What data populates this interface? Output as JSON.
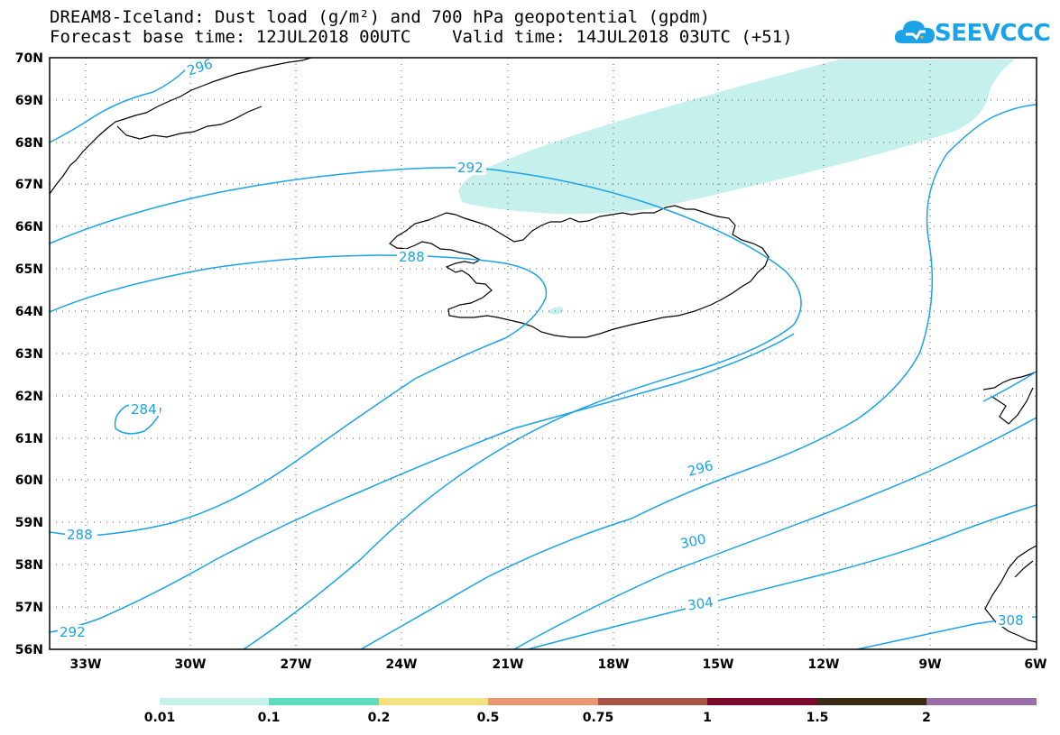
{
  "title": {
    "line1": "DREAM8-Iceland: Dust load (g/m²) and 700 hPa geopotential (gpdm)",
    "line2": "Forecast base time: 12JUL2018 00UTC    Valid time: 14JUL2018 03UTC (+51)"
  },
  "logo": {
    "text": "SEEVCCC",
    "color": "#1aa3e8"
  },
  "axes": {
    "lat_labels": [
      "70N",
      "69N",
      "68N",
      "67N",
      "66N",
      "65N",
      "64N",
      "63N",
      "62N",
      "61N",
      "60N",
      "59N",
      "58N",
      "57N",
      "56N"
    ],
    "lon_labels": [
      "33W",
      "30W",
      "27W",
      "24W",
      "21W",
      "18W",
      "15W",
      "12W",
      "9W",
      "6W"
    ]
  },
  "contours": {
    "color": "#1aa3e8",
    "labels": [
      "296",
      "292",
      "288",
      "284",
      "288",
      "296",
      "300",
      "304",
      "308",
      "292"
    ]
  },
  "dust": {
    "color": "#c6f0ec"
  },
  "colorbar": {
    "colors": [
      "#c6f0ec",
      "#5fdcc0",
      "#f3e27f",
      "#e99873",
      "#a85447",
      "#7a0a2b",
      "#3b2a14",
      "#9b6ea7"
    ],
    "labels": [
      "0.01",
      "0.1",
      "0.2",
      "0.5",
      "0.75",
      "1",
      "1.5",
      "2"
    ]
  }
}
